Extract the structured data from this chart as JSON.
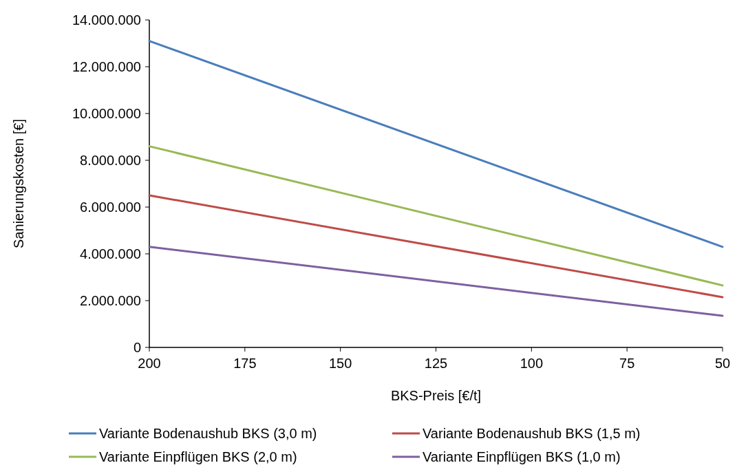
{
  "chart_data": {
    "type": "line",
    "xlabel": "BKS-Preis [€/t]",
    "ylabel": "Sanierungskosten [€]",
    "x": [
      200,
      50
    ],
    "xlim": [
      200,
      50
    ],
    "xticks": [
      200,
      175,
      150,
      125,
      100,
      75,
      50
    ],
    "ylim": [
      0,
      14000000
    ],
    "yticks": [
      {
        "value": 0,
        "label": "0"
      },
      {
        "value": 2000000,
        "label": "2.000.000"
      },
      {
        "value": 4000000,
        "label": "4.000.000"
      },
      {
        "value": 6000000,
        "label": "6.000.000"
      },
      {
        "value": 8000000,
        "label": "8.000.000"
      },
      {
        "value": 10000000,
        "label": "10.000.000"
      },
      {
        "value": 12000000,
        "label": "12.000.000"
      },
      {
        "value": 14000000,
        "label": "14.000.000"
      }
    ],
    "series": [
      {
        "name": "Variante Bodenaushub BKS (3,0 m)",
        "color": "#4a7ebb",
        "values": [
          13100000,
          4300000
        ]
      },
      {
        "name": "Variante Bodenaushub BKS (1,5 m)",
        "color": "#be4b48",
        "values": [
          6500000,
          2150000
        ]
      },
      {
        "name": "Variante Einpflügen BKS (2,0 m)",
        "color": "#98b954",
        "values": [
          8600000,
          2650000
        ]
      },
      {
        "name": "Variante Einpflügen BKS (1,0 m)",
        "color": "#7d60a0",
        "values": [
          4300000,
          1350000
        ]
      }
    ],
    "grid": false,
    "legend": "bottom",
    "marker": "none",
    "line_style": "solid"
  }
}
